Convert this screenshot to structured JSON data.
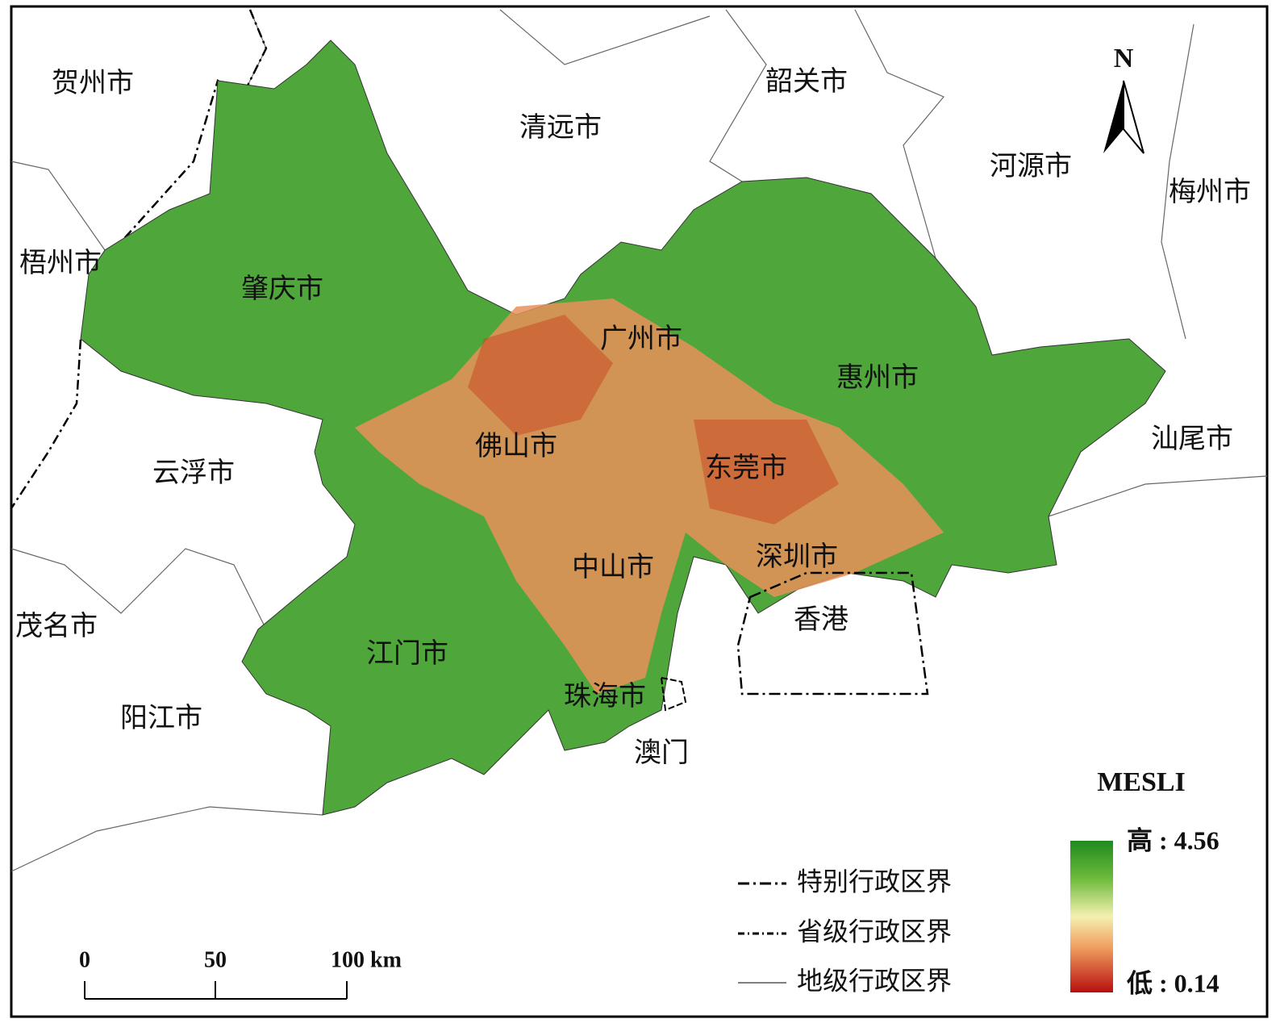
{
  "north": "N",
  "cities": [
    "贺州市",
    "清远市",
    "韶关市",
    "河源市",
    "梅州市",
    "梧州市",
    "肇庆市",
    "广州市",
    "惠州市",
    "汕尾市",
    "佛山市",
    "云浮市",
    "东莞市",
    "深圳市",
    "中山市",
    "茂名市",
    "香港",
    "江门市",
    "珠海市",
    "阳江市",
    "澳门"
  ],
  "legend": {
    "title": "MESLI",
    "high": "高 : 4.56",
    "low": "低 : 0.14"
  },
  "boundary_legend": [
    "特别行政区界",
    "省级行政区界",
    "地级行政区界"
  ],
  "scale_bar": [
    "0",
    "50",
    "100 km"
  ]
}
